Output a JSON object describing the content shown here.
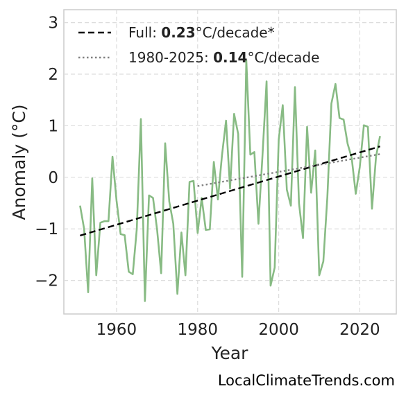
{
  "chart_data": {
    "type": "line",
    "title": "",
    "xlabel": "Year",
    "ylabel": "Anomaly (°C)",
    "xlim": [
      1947,
      2029
    ],
    "ylim": [
      -2.65,
      3.25
    ],
    "xticks": [
      1960,
      1980,
      2000,
      2020
    ],
    "yticks": [
      -2,
      -1,
      0,
      1,
      2,
      3
    ],
    "ytick_labels": [
      "−2",
      "−1",
      "0",
      "1",
      "2",
      "3"
    ],
    "grid": true,
    "legend_position": "top-left",
    "series": [
      {
        "color": "#88bb84",
        "x": [
          1951,
          1952,
          1953,
          1954,
          1955,
          1956,
          1957,
          1958,
          1959,
          1960,
          1961,
          1962,
          1963,
          1964,
          1965,
          1966,
          1967,
          1968,
          1969,
          1970,
          1971,
          1972,
          1973,
          1974,
          1975,
          1976,
          1977,
          1978,
          1979,
          1980,
          1981,
          1982,
          1983,
          1984,
          1985,
          1986,
          1987,
          1988,
          1989,
          1990,
          1991,
          1992,
          1993,
          1994,
          1995,
          1996,
          1997,
          1998,
          1999,
          2000,
          2001,
          2002,
          2003,
          2004,
          2005,
          2006,
          2007,
          2008,
          2009,
          2010,
          2011,
          2012,
          2013,
          2014,
          2015,
          2016,
          2017,
          2018,
          2019,
          2020,
          2021,
          2022,
          2023,
          2024,
          2025
        ],
        "y": [
          -0.55,
          -1.0,
          -2.23,
          -0.02,
          -1.9,
          -0.88,
          -0.85,
          -0.85,
          0.4,
          -0.45,
          -1.1,
          -1.12,
          -1.83,
          -1.88,
          -1.0,
          1.13,
          -2.4,
          -0.35,
          -0.4,
          -1.02,
          -1.86,
          0.66,
          -0.47,
          -0.9,
          -2.26,
          -1.07,
          -1.9,
          -0.09,
          -0.07,
          -1.08,
          -0.4,
          -1.02,
          -1.01,
          0.3,
          -0.43,
          0.42,
          1.1,
          -0.22,
          1.23,
          0.84,
          -1.93,
          2.27,
          0.44,
          0.49,
          -0.9,
          0.42,
          1.86,
          -2.1,
          -1.75,
          0.73,
          1.4,
          -0.24,
          -0.55,
          1.75,
          -0.5,
          -1.18,
          0.98,
          -0.3,
          0.52,
          -1.9,
          -1.63,
          -0.38,
          1.43,
          1.81,
          1.15,
          1.12,
          0.65,
          0.38,
          -0.32,
          0.2,
          1.01,
          0.98,
          -0.61,
          0.4,
          0.8
        ]
      }
    ],
    "trendlines": [
      {
        "label_prefix": "Full: ",
        "label_value": "0.23",
        "label_suffix": "°C/decade*",
        "style": "dashed",
        "color": "#000000",
        "x": [
          1951,
          2025
        ],
        "y": [
          -1.13,
          0.6
        ]
      },
      {
        "label_prefix": "1980-2025: ",
        "label_value": "0.14",
        "label_suffix": "°C/decade",
        "style": "dotted",
        "color": "#808080",
        "x": [
          1980,
          2025
        ],
        "y": [
          -0.17,
          0.45
        ]
      }
    ]
  },
  "footer": "LocalClimateTrends.com"
}
